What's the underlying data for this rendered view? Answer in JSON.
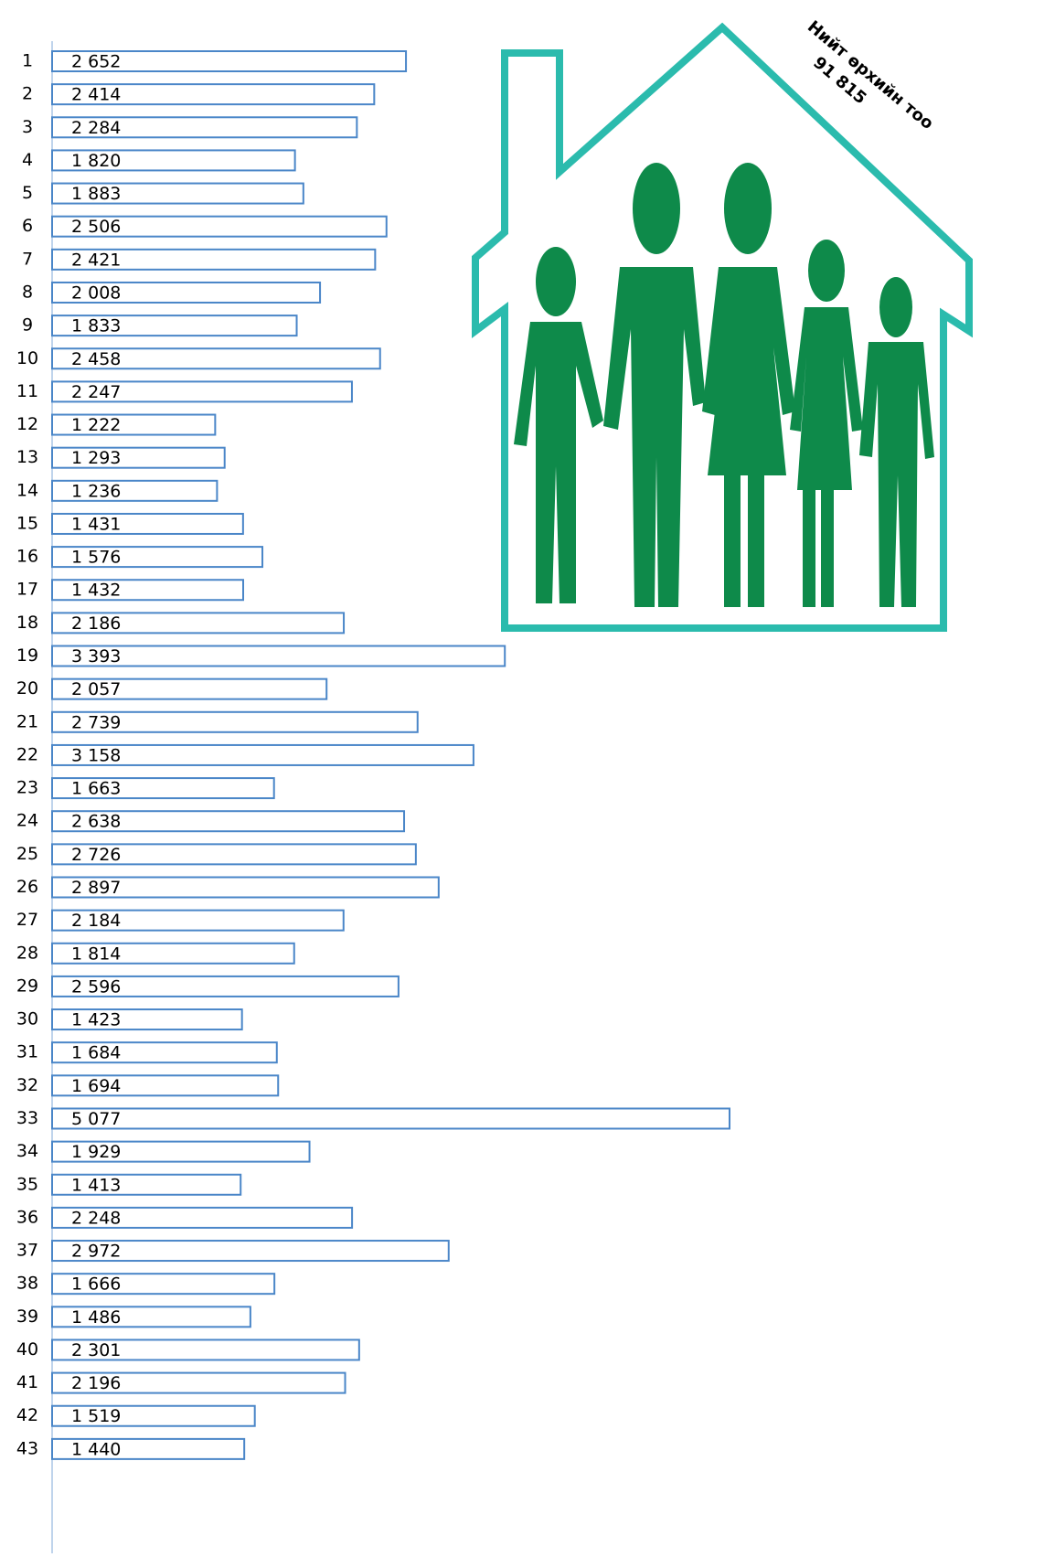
{
  "chart_data": {
    "type": "bar",
    "orientation": "horizontal",
    "categories": [
      "1",
      "2",
      "3",
      "4",
      "5",
      "6",
      "7",
      "8",
      "9",
      "10",
      "11",
      "12",
      "13",
      "14",
      "15",
      "16",
      "17",
      "18",
      "19",
      "20",
      "21",
      "22",
      "23",
      "24",
      "25",
      "26",
      "27",
      "28",
      "29",
      "30",
      "31",
      "32",
      "33",
      "34",
      "35",
      "36",
      "37",
      "38",
      "39",
      "40",
      "41",
      "42",
      "43"
    ],
    "values": [
      2652,
      2414,
      2284,
      1820,
      1883,
      2506,
      2421,
      2008,
      1833,
      2458,
      2247,
      1222,
      1293,
      1236,
      1431,
      1576,
      1432,
      2186,
      3393,
      2057,
      2739,
      3158,
      1663,
      2638,
      2726,
      2897,
      2184,
      1814,
      2596,
      1423,
      1684,
      1694,
      5077,
      1929,
      1413,
      2248,
      2972,
      1666,
      1486,
      2301,
      2196,
      1519,
      1440
    ],
    "value_labels": [
      "2 652",
      "2 414",
      "2 284",
      "1 820",
      "1 883",
      "2 506",
      "2 421",
      "2 008",
      "1 833",
      "2 458",
      "2 247",
      "1 222",
      "1 293",
      "1 236",
      "1 431",
      "1 576",
      "1 432",
      "2 186",
      "3 393",
      "2 057",
      "2 739",
      "3 158",
      "1 663",
      "2 638",
      "2 726",
      "2 897",
      "2 184",
      "1 814",
      "2 596",
      "1 423",
      "1 684",
      "1 694",
      "5 077",
      "1 929",
      "1 413",
      "2 248",
      "2 972",
      "1 666",
      "1 486",
      "2 301",
      "2 196",
      "1 519",
      "1 440"
    ],
    "color": "#4a86c8",
    "annotations": [
      "Нийт өрхийн тоо",
      "91 815"
    ]
  }
}
